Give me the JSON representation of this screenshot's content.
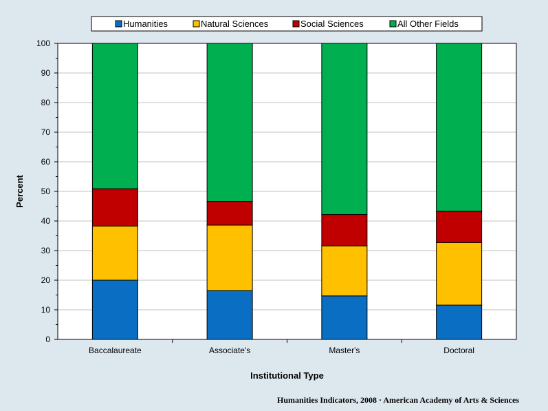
{
  "chart_data": {
    "type": "bar",
    "stacked": true,
    "categories": [
      "Baccalaureate",
      "Associate's",
      "Master's",
      "Doctoral"
    ],
    "series": [
      {
        "name": "Humanities",
        "color": "#0a6fc2",
        "values": [
          20.0,
          16.5,
          14.7,
          11.6
        ]
      },
      {
        "name": "Natural Sciences",
        "color": "#ffc000",
        "values": [
          18.3,
          22.1,
          16.9,
          21.1
        ]
      },
      {
        "name": "Social Sciences",
        "color": "#c00000",
        "values": [
          12.6,
          8.0,
          10.6,
          10.6
        ]
      },
      {
        "name": "All Other Fields",
        "color": "#00b050",
        "values": [
          49.1,
          53.4,
          57.8,
          56.7
        ]
      }
    ],
    "xlabel": "Institutional Type",
    "ylabel": "Percent",
    "ylim": [
      0,
      100
    ],
    "yticks": [
      0,
      10,
      20,
      30,
      40,
      50,
      60,
      70,
      80,
      90,
      100
    ],
    "grid": true,
    "legend_position": "top"
  },
  "credit": "Humanities Indicators, 2008 · American Academy of Arts & Sciences"
}
